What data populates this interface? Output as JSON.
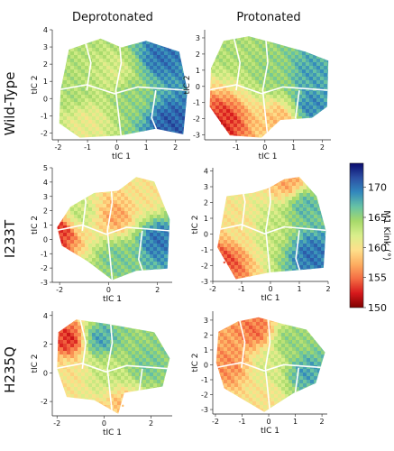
{
  "figure": {
    "column_titles": [
      "Deprotonated",
      "Protonated"
    ],
    "row_titles": [
      "Wild-Type",
      "I233T",
      "H235Q"
    ]
  },
  "colorbar": {
    "label": "M1 Kink (°)",
    "min": 150,
    "max": 174,
    "ticks": [
      150,
      155,
      160,
      165,
      170
    ],
    "colormap": [
      "#7f0000",
      "#d7191c",
      "#f46d43",
      "#fdae61",
      "#fee08b",
      "#d9ef8b",
      "#a6d96a",
      "#66c2a5",
      "#3288bd",
      "#2c4fa3",
      "#0b0b6e"
    ]
  },
  "chart_data": [
    {
      "type": "heatmap",
      "panel": "Wild-Type / Deprotonated",
      "xlabel": "tIC 1",
      "ylabel": "tIC 2",
      "xlim": [
        -2.2,
        2.5
      ],
      "ylim": [
        -2.4,
        4.0
      ],
      "xticks": [
        "-2",
        "-1",
        "0",
        "1",
        "2"
      ],
      "yticks": [
        "-2",
        "-1",
        "0",
        "1",
        "2",
        "3",
        "4"
      ],
      "value_range": [
        150,
        174
      ],
      "regions": [
        {
          "x": -1.5,
          "y": 0.5,
          "value": 164
        },
        {
          "x": -1.0,
          "y": -1.4,
          "value": 161
        },
        {
          "x": 0.0,
          "y": 1.5,
          "value": 162
        },
        {
          "x": 0.5,
          "y": 0.2,
          "value": 165
        },
        {
          "x": 1.5,
          "y": 2.4,
          "value": 170
        },
        {
          "x": 1.8,
          "y": -1.5,
          "value": 171
        }
      ]
    },
    {
      "type": "heatmap",
      "panel": "Wild-Type / Protonated",
      "xlabel": "tIC 1",
      "ylabel": "tIC 2",
      "xlim": [
        -2.1,
        2.3
      ],
      "ylim": [
        -3.3,
        3.5
      ],
      "xticks": [
        "-1",
        "0",
        "1",
        "2"
      ],
      "yticks": [
        "-3",
        "-2",
        "-1",
        "0",
        "1",
        "2",
        "3"
      ],
      "value_range": [
        150,
        174
      ],
      "regions": [
        {
          "x": -1.2,
          "y": 2.5,
          "value": 164
        },
        {
          "x": -1.5,
          "y": -2.3,
          "value": 153
        },
        {
          "x": 0.5,
          "y": -2.0,
          "value": 158
        },
        {
          "x": 0.3,
          "y": 0.8,
          "value": 165
        },
        {
          "x": 1.6,
          "y": 0.8,
          "value": 168
        },
        {
          "x": 1.6,
          "y": -1.2,
          "value": 169
        }
      ]
    },
    {
      "type": "heatmap",
      "panel": "I233T / Deprotonated",
      "xlabel": "tIC 1",
      "ylabel": "tIC 2",
      "xlim": [
        -2.3,
        2.6
      ],
      "ylim": [
        -3.0,
        5.0
      ],
      "xticks": [
        "-2",
        "0",
        "2"
      ],
      "yticks": [
        "-3",
        "-2",
        "-1",
        "0",
        "1",
        "2",
        "3",
        "4",
        "5"
      ],
      "value_range": [
        150,
        174
      ],
      "regions": [
        {
          "x": -2.0,
          "y": 0.5,
          "value": 153
        },
        {
          "x": -1.2,
          "y": 1.8,
          "value": 163
        },
        {
          "x": 0.3,
          "y": 1.6,
          "value": 157
        },
        {
          "x": 0.3,
          "y": -1.3,
          "value": 166
        },
        {
          "x": 1.6,
          "y": 3.0,
          "value": 160
        },
        {
          "x": 2.0,
          "y": 0.0,
          "value": 170
        }
      ]
    },
    {
      "type": "heatmap",
      "panel": "I233T / Protonated",
      "xlabel": "tIC 1",
      "ylabel": "tIC 2",
      "xlim": [
        -2.0,
        2.0
      ],
      "ylim": [
        -3.0,
        4.2
      ],
      "xticks": [
        "-2",
        "-1",
        "0",
        "1",
        "2"
      ],
      "yticks": [
        "-3",
        "-2",
        "-1",
        "0",
        "1",
        "2",
        "3",
        "4"
      ],
      "value_range": [
        150,
        174
      ],
      "regions": [
        {
          "x": -1.6,
          "y": -1.8,
          "value": 154
        },
        {
          "x": -1.0,
          "y": 0.5,
          "value": 160
        },
        {
          "x": 0.0,
          "y": 0.3,
          "value": 163
        },
        {
          "x": 1.2,
          "y": 1.8,
          "value": 167
        },
        {
          "x": 1.4,
          "y": -1.3,
          "value": 170
        },
        {
          "x": 0.6,
          "y": 3.3,
          "value": 157
        }
      ]
    },
    {
      "type": "heatmap",
      "panel": "H235Q / Deprotonated",
      "xlabel": "tIC 1",
      "ylabel": "tIC 2",
      "xlim": [
        -2.2,
        2.9
      ],
      "ylim": [
        -3.0,
        4.3
      ],
      "xticks": [
        "-2",
        "0",
        "2"
      ],
      "yticks": [
        "-2",
        "0",
        "2",
        "4"
      ],
      "value_range": [
        150,
        174
      ],
      "regions": [
        {
          "x": -1.5,
          "y": 2.3,
          "value": 153
        },
        {
          "x": -1.6,
          "y": 0.0,
          "value": 160
        },
        {
          "x": -0.2,
          "y": 2.3,
          "value": 168
        },
        {
          "x": 0.2,
          "y": 0.0,
          "value": 163
        },
        {
          "x": 1.8,
          "y": 0.5,
          "value": 166
        },
        {
          "x": 0.8,
          "y": -2.3,
          "value": 158
        }
      ]
    },
    {
      "type": "heatmap",
      "panel": "H235Q / Protonated",
      "xlabel": "tIC 1",
      "ylabel": "tIC 2",
      "xlim": [
        -2.1,
        2.2
      ],
      "ylim": [
        -3.3,
        3.6
      ],
      "xticks": [
        "-2",
        "-1",
        "0",
        "1",
        "2"
      ],
      "yticks": [
        "-3",
        "-2",
        "-1",
        "0",
        "1",
        "2",
        "3"
      ],
      "value_range": [
        150,
        174
      ],
      "regions": [
        {
          "x": -1.5,
          "y": 0.0,
          "value": 156
        },
        {
          "x": -0.5,
          "y": 2.3,
          "value": 155
        },
        {
          "x": 0.0,
          "y": 0.0,
          "value": 162
        },
        {
          "x": 0.8,
          "y": 1.6,
          "value": 165
        },
        {
          "x": 1.4,
          "y": -0.5,
          "value": 168
        },
        {
          "x": -0.2,
          "y": -2.4,
          "value": 160
        }
      ]
    }
  ]
}
